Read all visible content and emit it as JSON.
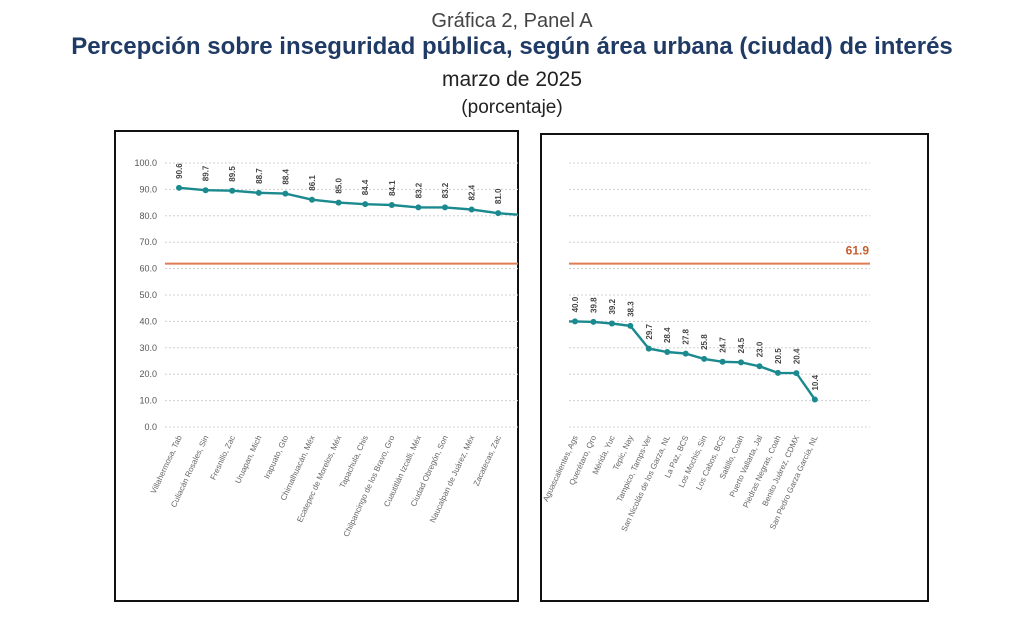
{
  "header": {
    "kicker": "Gráfica 2, Panel A",
    "title": "Percepción sobre inseguridad pública, según área urbana (ciudad) de interés",
    "subtitle": "marzo de 2025",
    "unit": "(porcentaje)"
  },
  "chart_data": {
    "type": "line",
    "ylim": [
      0,
      100
    ],
    "yticks": [
      "0.0",
      "10.0",
      "20.0",
      "30.0",
      "40.0",
      "50.0",
      "60.0",
      "70.0",
      "80.0",
      "90.0",
      "100.0"
    ],
    "grid": true,
    "reference_line": {
      "value": 61.9,
      "label": "61.9",
      "color": "#e07b54"
    },
    "line_color": "#1b8a8f",
    "panels": [
      {
        "categories": [
          "Villahermosa, Tab",
          "Culiacán Rosales, Sin",
          "Fresnillo, Zac",
          "Uruapan, Mich",
          "Irapuato, Gto",
          "Chimalhuacán, Méx",
          "Ecatepec de Morelos, Méx",
          "Tapachula, Chis",
          "Chilpancingo de los Bravo, Gro",
          "Cuautitlán Izcalli, Méx",
          "Ciudad Obregón, Son",
          "Naucalpan de Juárez, Méx",
          "Zacatecas, Zac"
        ],
        "values": [
          90.6,
          89.7,
          89.5,
          88.7,
          88.4,
          86.1,
          85.0,
          84.4,
          84.1,
          83.2,
          83.2,
          82.4,
          81.0
        ],
        "labels": [
          "90.6",
          "89.7",
          "89.5",
          "88.7",
          "88.4",
          "86.1",
          "85.0",
          "84.4",
          "84.1",
          "83.2",
          "83.2",
          "82.4",
          "81.0"
        ]
      },
      {
        "categories": [
          "Aguascalientes, Ags",
          "Querétaro, Qro",
          "Mérida, Yuc",
          "Tepic, Nay",
          "Tampico, Tamps-Ver",
          "San Nicolás de los Garza, NL",
          "La Paz, BCS",
          "Los Mochis, Sin",
          "Los Cabos, BCS",
          "Saltillo, Coah",
          "Puerto Vallarta, Jal",
          "Piedras Negras, Coah",
          "Benito Juárez, CDMX",
          "San Pedro Garza García, NL"
        ],
        "values": [
          40.0,
          39.8,
          39.2,
          38.3,
          29.7,
          28.4,
          27.8,
          25.8,
          24.7,
          24.5,
          23.0,
          20.5,
          20.4,
          10.4
        ],
        "labels": [
          "40.0",
          "39.8",
          "39.2",
          "38.3",
          "29.7",
          "28.4",
          "27.8",
          "25.8",
          "24.7",
          "24.5",
          "23.0",
          "20.5",
          "20.4",
          "10.4"
        ]
      }
    ]
  }
}
